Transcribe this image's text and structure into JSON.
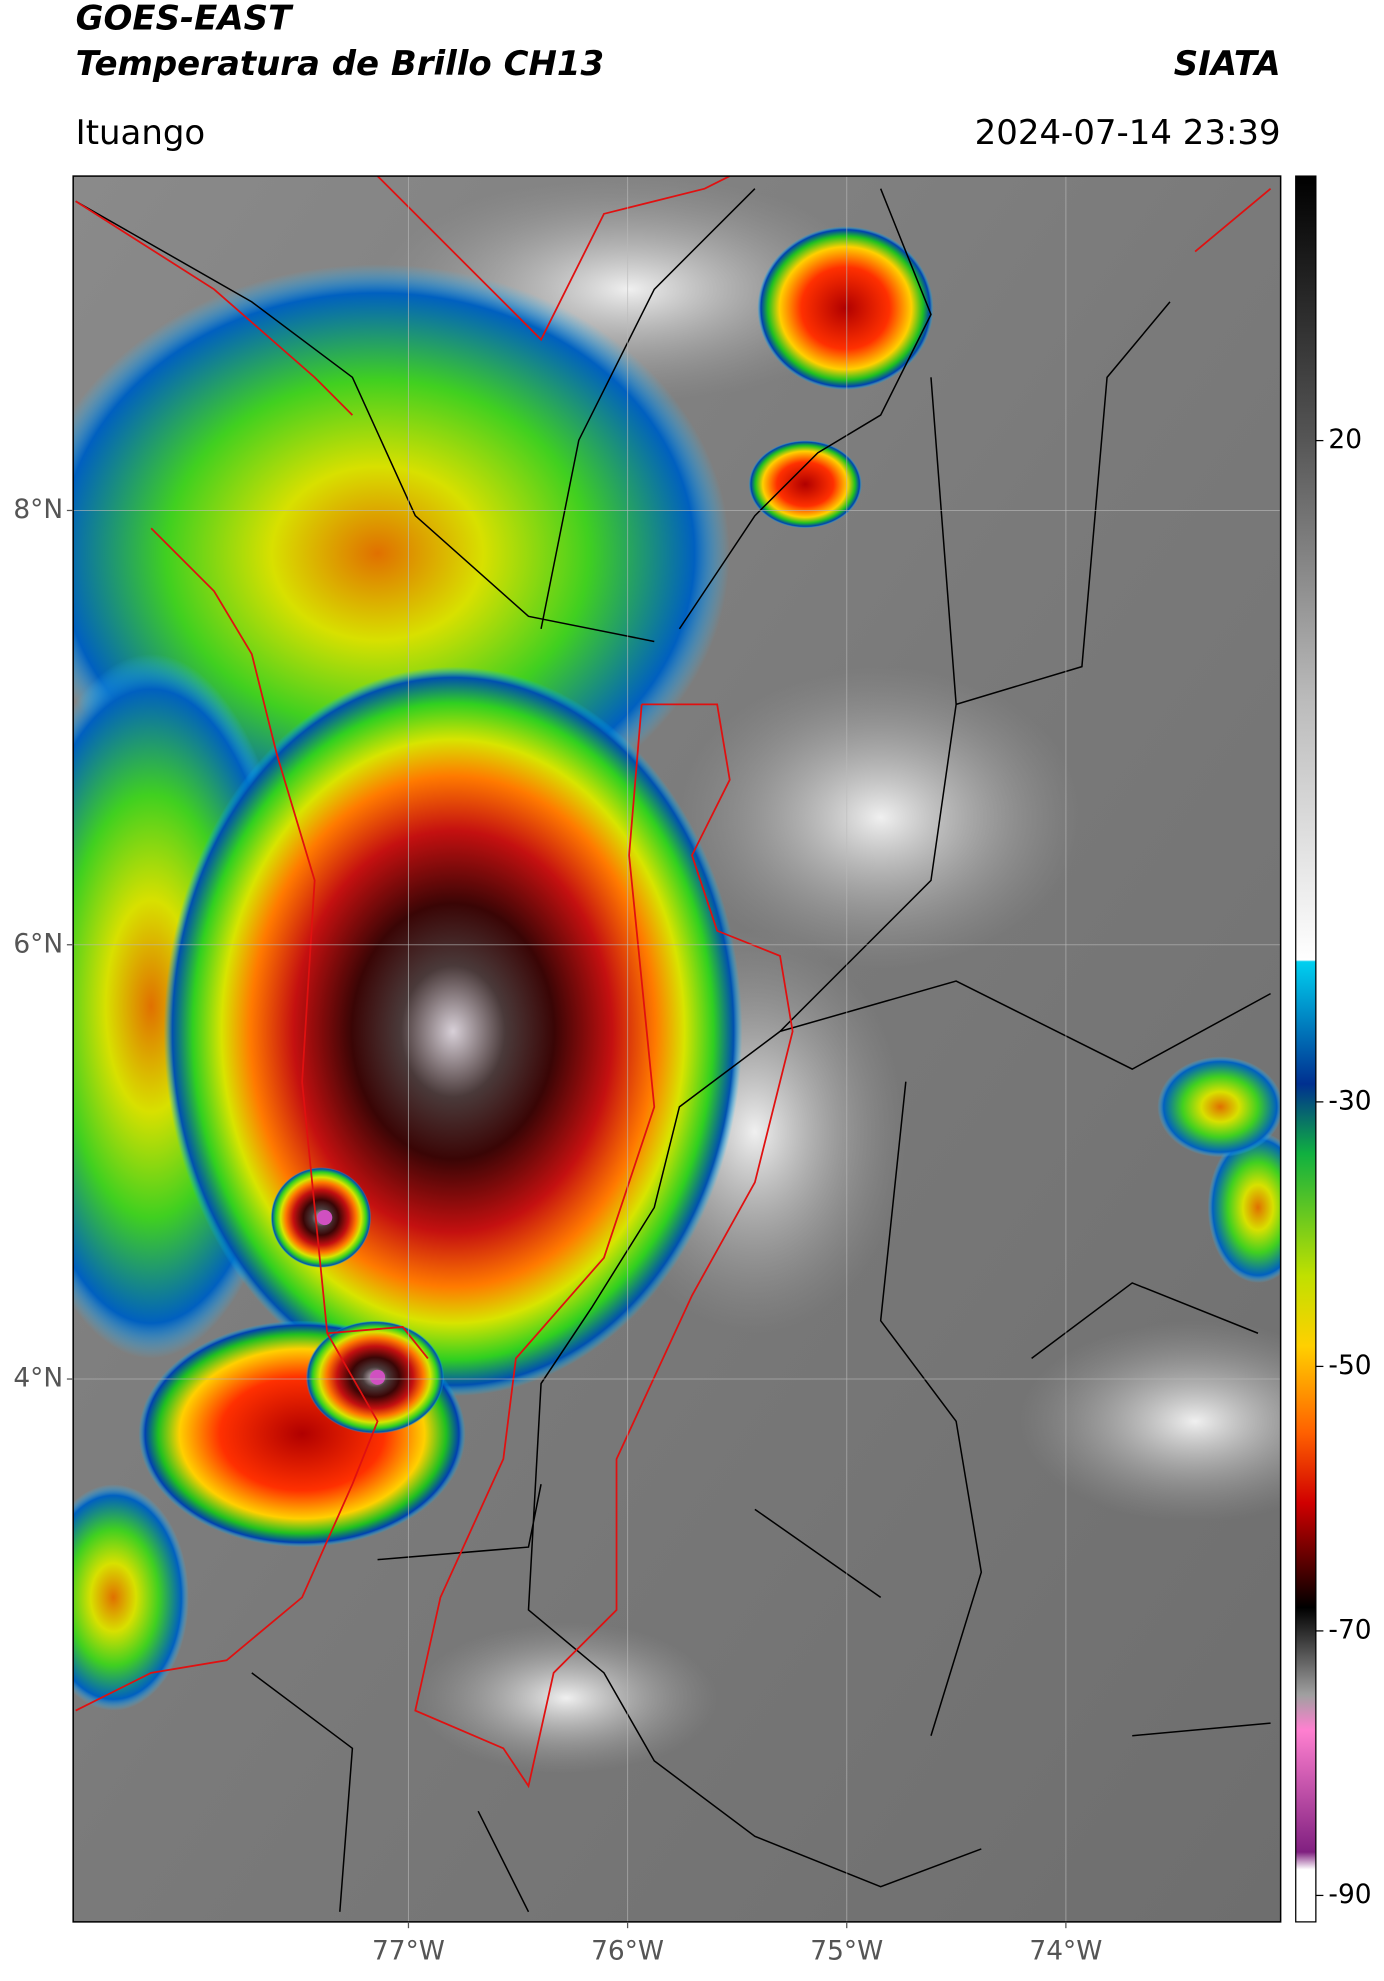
{
  "header": {
    "title": "GOES-EAST",
    "subtitle": "Temperatura de Brillo CH13",
    "source": "SIATA",
    "location": "Ituango",
    "datetime": "2024-07-14 23:39"
  },
  "map": {
    "lonlim": [
      -78.53,
      -73.02
    ],
    "latlim": [
      1.5,
      9.54
    ],
    "grid": true,
    "lonticks": [
      {
        "value": -77,
        "label": "77°W"
      },
      {
        "value": -76,
        "label": "76°W"
      },
      {
        "value": -75,
        "label": "75°W"
      },
      {
        "value": -74,
        "label": "74°W"
      }
    ],
    "latticks": [
      {
        "value": 8,
        "label": "8°N"
      },
      {
        "value": 6,
        "label": "6°N"
      },
      {
        "value": 4,
        "label": "4°N"
      }
    ]
  },
  "colorbar": {
    "lim": [
      -92,
      40
    ],
    "ticks": [
      20,
      -30,
      -50,
      -70,
      -90
    ]
  }
}
